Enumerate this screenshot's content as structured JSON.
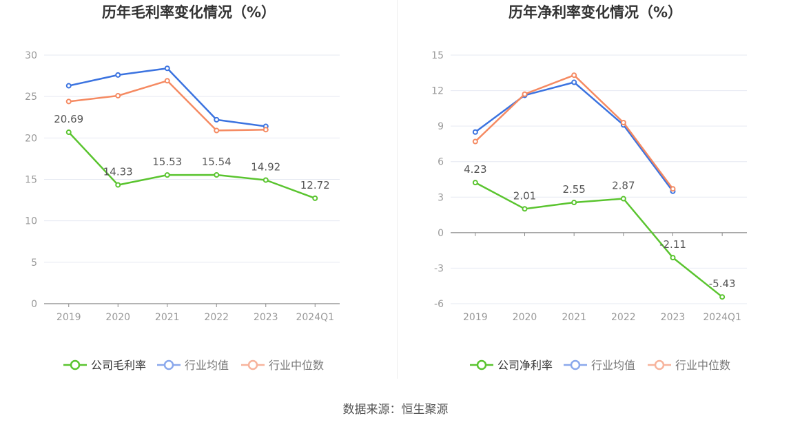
{
  "colors": {
    "company": "#5ac42f",
    "industry_avg": "#3b73e0",
    "industry_median": "#f58a62",
    "legend_avg": "#8aa8ec",
    "legend_median": "#f7b39c",
    "grid": "#e6e9f2",
    "axis": "#888888",
    "tick_text": "#999999",
    "label_text": "#555555",
    "title_text": "#333333"
  },
  "source": "数据来源：恒生聚源",
  "chart_data": [
    {
      "type": "line",
      "title": "历年毛利率变化情况（%）",
      "categories": [
        "2019",
        "2020",
        "2021",
        "2022",
        "2023",
        "2024Q1"
      ],
      "ylim": [
        0,
        30
      ],
      "yticks": [
        0,
        5,
        10,
        15,
        20,
        25,
        30
      ],
      "ytick_labels": [
        "0",
        "5",
        "10",
        "15",
        "20",
        "25",
        "30"
      ],
      "series": [
        {
          "key": "company",
          "name": "公司毛利率",
          "values": [
            20.69,
            14.33,
            15.53,
            15.54,
            14.92,
            12.72
          ],
          "labels": [
            "20.69",
            "14.33",
            "15.53",
            "15.54",
            "14.92",
            "12.72"
          ]
        },
        {
          "key": "industry_avg",
          "name": "行业均值",
          "values": [
            26.3,
            27.6,
            28.4,
            22.2,
            21.4,
            null
          ]
        },
        {
          "key": "industry_median",
          "name": "行业中位数",
          "values": [
            24.4,
            25.1,
            26.9,
            20.9,
            21.0,
            null
          ]
        }
      ]
    },
    {
      "type": "line",
      "title": "历年净利率变化情况（%）",
      "categories": [
        "2019",
        "2020",
        "2021",
        "2022",
        "2023",
        "2024Q1"
      ],
      "ylim": [
        -6,
        15
      ],
      "yticks": [
        -6,
        -3,
        0,
        3,
        6,
        9,
        12,
        15
      ],
      "ytick_labels": [
        "-6",
        "-3",
        "0",
        "3",
        "6",
        "9",
        "12",
        "15"
      ],
      "series": [
        {
          "key": "company",
          "name": "公司净利率",
          "values": [
            4.23,
            2.01,
            2.55,
            2.87,
            -2.11,
            -5.43
          ],
          "labels": [
            "4.23",
            "2.01",
            "2.55",
            "2.87",
            "-2.11",
            "-5.43"
          ]
        },
        {
          "key": "industry_avg",
          "name": "行业均值",
          "values": [
            8.5,
            11.6,
            12.7,
            9.1,
            3.5,
            null
          ]
        },
        {
          "key": "industry_median",
          "name": "行业中位数",
          "values": [
            7.7,
            11.7,
            13.3,
            9.3,
            3.7,
            null
          ]
        }
      ]
    }
  ]
}
